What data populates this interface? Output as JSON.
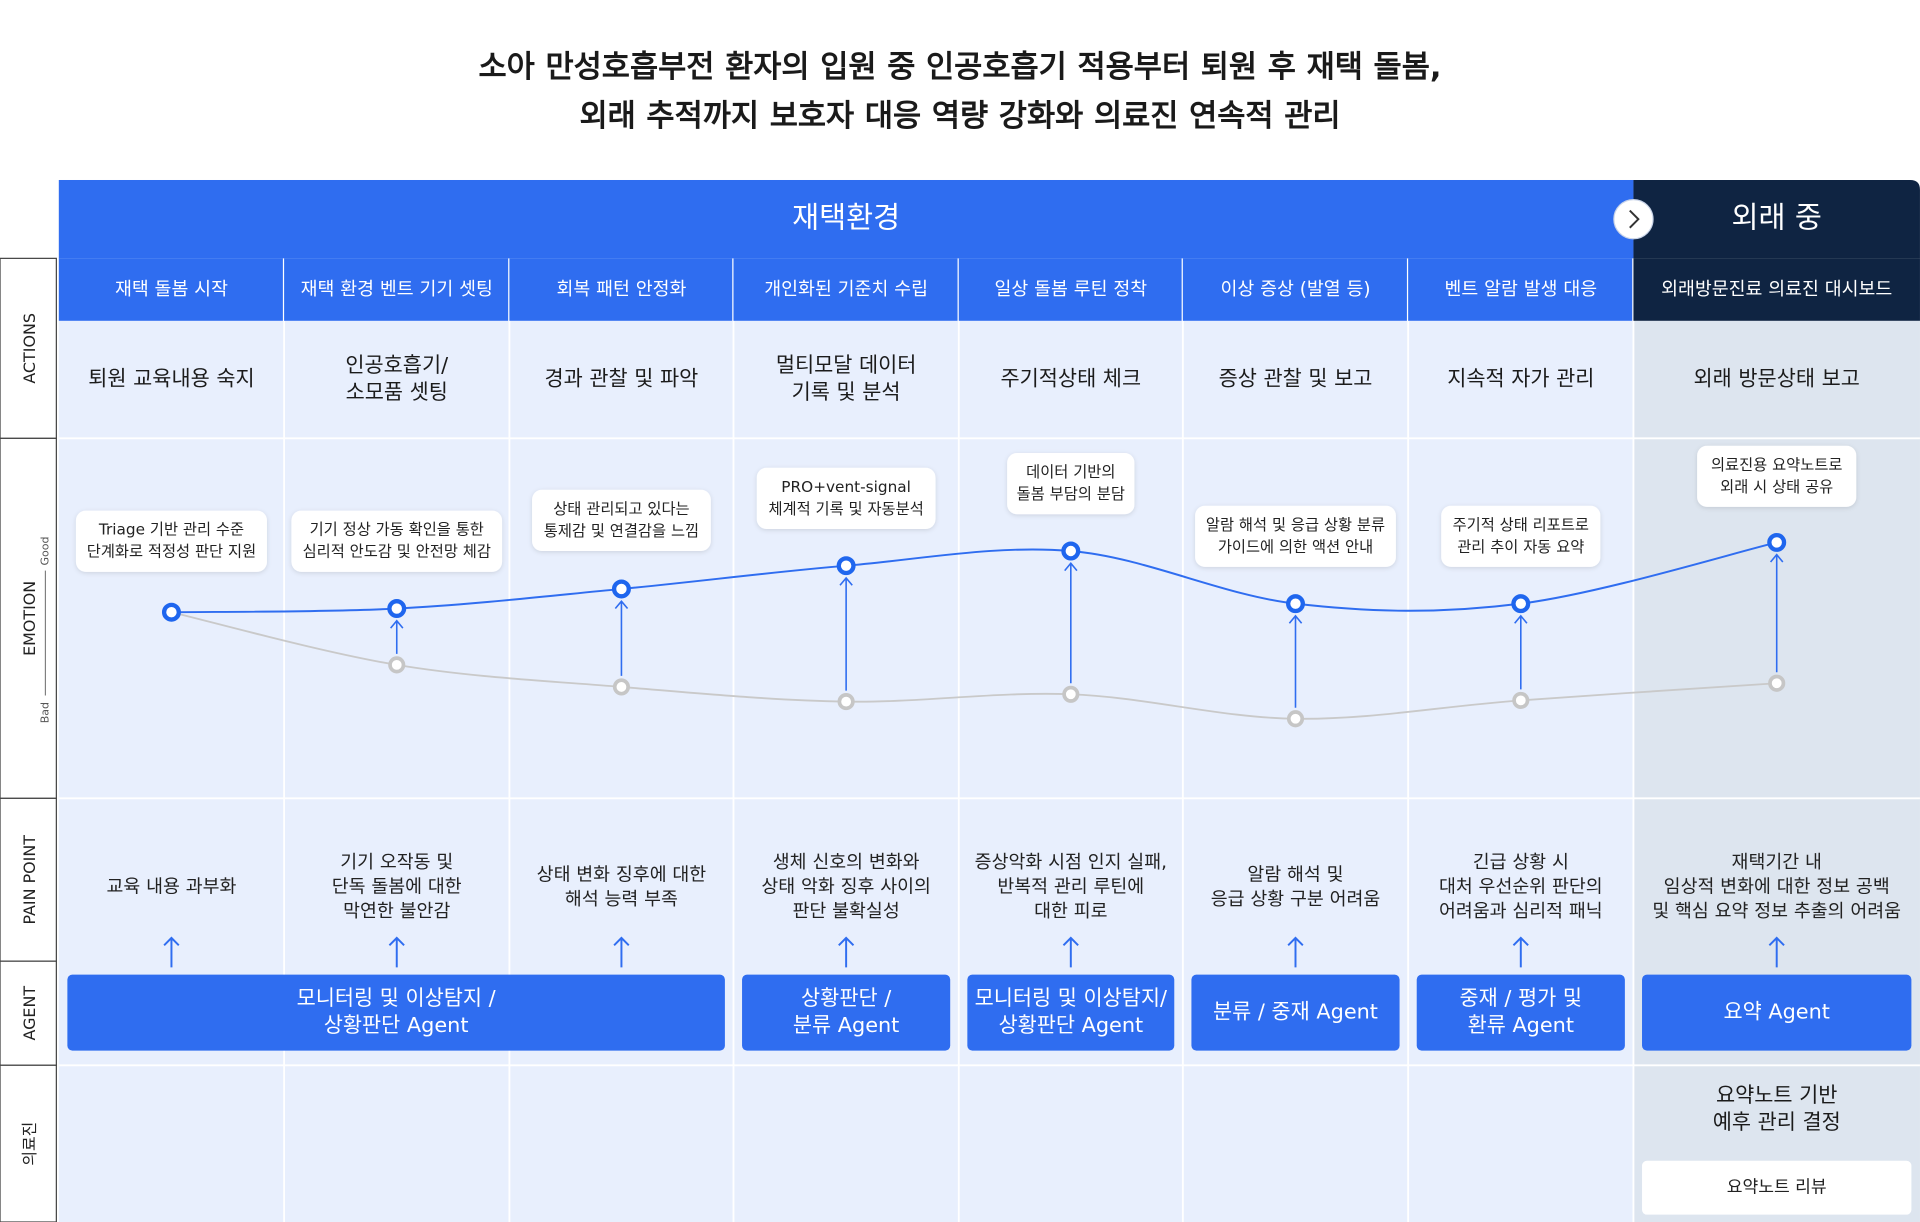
{
  "title": [
    "소아 만성호흡부전 환자의 입원 중 인공호흡기 적용부터 퇴원 후 재택 돌봄,",
    "외래 추적까지 보호자 대응 역량 강화와 의료진 연속적 관리"
  ],
  "phases": [
    "재택환경",
    "외래 중"
  ],
  "row_labels": [
    "ACTIONS",
    "EMOTION",
    "PAIN POINT",
    "AGENT",
    "의료진"
  ],
  "emotion_axis": {
    "good": "Good",
    "bad": "Bad"
  },
  "stages": [
    {
      "header": "재택 돌봄 시작",
      "action": [
        "퇴원 교육내용 숙지"
      ],
      "note": [
        "Triage 기반 관리 수준",
        "단계화로 적정성 판단 지원"
      ],
      "pain": [
        "교육 내용 과부화"
      ]
    },
    {
      "header": "재택 환경 벤트 기기 셋팅",
      "action": [
        "인공호흡기/",
        "소모품 셋팅"
      ],
      "note": [
        "기기 정상 가동 확인을 통한",
        "심리적 안도감 및 안전망 체감"
      ],
      "pain": [
        "기기 오작동 및",
        "단독 돌봄에 대한",
        "막연한 불안감"
      ]
    },
    {
      "header": "회복 패턴 안정화",
      "action": [
        "경과 관찰 및 파악"
      ],
      "note": [
        "상태 관리되고 있다는",
        "통제감 및 연결감을 느낌"
      ],
      "pain": [
        "상태 변화 징후에 대한",
        "해석 능력 부족"
      ]
    },
    {
      "header": "개인화된 기준치 수립",
      "action": [
        "멀티모달 데이터",
        "기록 및 분석"
      ],
      "note": [
        "PRO+vent-signal",
        "체계적 기록 및 자동분석"
      ],
      "pain": [
        "생체 신호의 변화와",
        "상태 악화 징후 사이의",
        "판단 불확실성"
      ]
    },
    {
      "header": "일상 돌봄 루틴 정착",
      "action": [
        "주기적상태 체크"
      ],
      "note": [
        "데이터 기반의",
        "돌봄 부담의 분담"
      ],
      "pain": [
        "증상악화 시점 인지 실패,",
        "반복적 관리 루틴에",
        "대한 피로"
      ]
    },
    {
      "header": "이상 증상  (발열 등)",
      "action": [
        "증상 관찰 및 보고"
      ],
      "note": [
        "알람 해석 및 응급 상황 분류",
        "가이드에 의한 액션 안내"
      ],
      "pain": [
        "알람 해석 및",
        "응급 상황 구분 어려움"
      ]
    },
    {
      "header": "벤트 알람 발생 대응",
      "action": [
        "지속적 자가 관리"
      ],
      "note": [
        "주기적 상태 리포트로",
        "관리 추이 자동 요약"
      ],
      "pain": [
        "긴급 상황 시",
        "대처 우선순위 판단의",
        "어려움과 심리적 패닉"
      ]
    },
    {
      "header": "외래방문진료 의료진 대시보드",
      "action": [
        "외래 방문상태 보고"
      ],
      "note": [
        "의료진용 요약노트로",
        "외래 시 상태 공유"
      ],
      "pain": [
        "재택기간 내",
        "임상적 변화에 대한 정보 공백",
        "및 핵심 요약 정보 추출의 어려움"
      ]
    }
  ],
  "agents": [
    [
      "모니터링 및 이상탐지 /",
      "상황판단 Agent"
    ],
    [
      "상황판단 /",
      "분류 Agent"
    ],
    [
      "모니터링 및 이상탐지/",
      "상황판단 Agent"
    ],
    [
      "분류 / 중재 Agent"
    ],
    [
      "중재 / 평가 및",
      "환류 Agent"
    ],
    [
      "요약 Agent"
    ]
  ],
  "staff": {
    "note": [
      "요약노트 기반",
      "예후 관리 결정"
    ],
    "button": "요약노트 리뷰"
  }
}
